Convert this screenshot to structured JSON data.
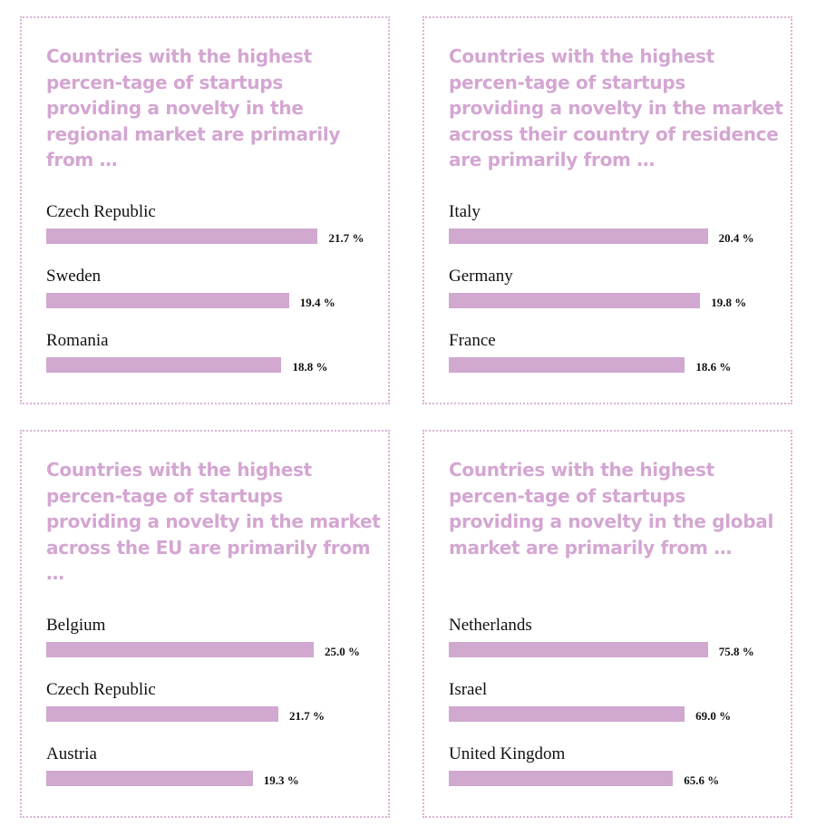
{
  "colors": {
    "title": "#d4a6d2",
    "bar": "#d0a8d0",
    "border": "#d9b3d6"
  },
  "chart_data": [
    {
      "type": "bar",
      "orientation": "horizontal",
      "title": "Countries with the highest percen-tage of startups providing a novelty in the regional market are primarily from …",
      "categories": [
        "Czech Republic",
        "Sweden",
        "Romania"
      ],
      "values": [
        21.7,
        19.4,
        18.8
      ],
      "labels": [
        "21.7 %",
        "19.4 %",
        "18.8 %"
      ]
    },
    {
      "type": "bar",
      "orientation": "horizontal",
      "title": "Countries with the highest percen-tage of startups providing a novelty in the market across their country of residence are primarily from …",
      "categories": [
        "Italy",
        "Germany",
        "France"
      ],
      "values": [
        20.4,
        19.8,
        18.6
      ],
      "labels": [
        "20.4 %",
        "19.8 %",
        "18.6 %"
      ]
    },
    {
      "type": "bar",
      "orientation": "horizontal",
      "title": "Countries with the highest percen-tage of startups providing a novelty in the market across the EU are primarily from …",
      "categories": [
        "Belgium",
        "Czech Republic",
        "Austria"
      ],
      "values": [
        25.0,
        21.7,
        19.3
      ],
      "labels": [
        "25.0 %",
        "21.7 %",
        "19.3 %"
      ]
    },
    {
      "type": "bar",
      "orientation": "horizontal",
      "title": "Countries with the highest percen-tage of startups providing a novelty in the global market are primarily from …",
      "categories": [
        "Netherlands",
        "Israel",
        "United Kingdom"
      ],
      "values": [
        75.8,
        69.0,
        65.6
      ],
      "labels": [
        "75.8 %",
        "69.0 %",
        "65.6 %"
      ]
    }
  ]
}
